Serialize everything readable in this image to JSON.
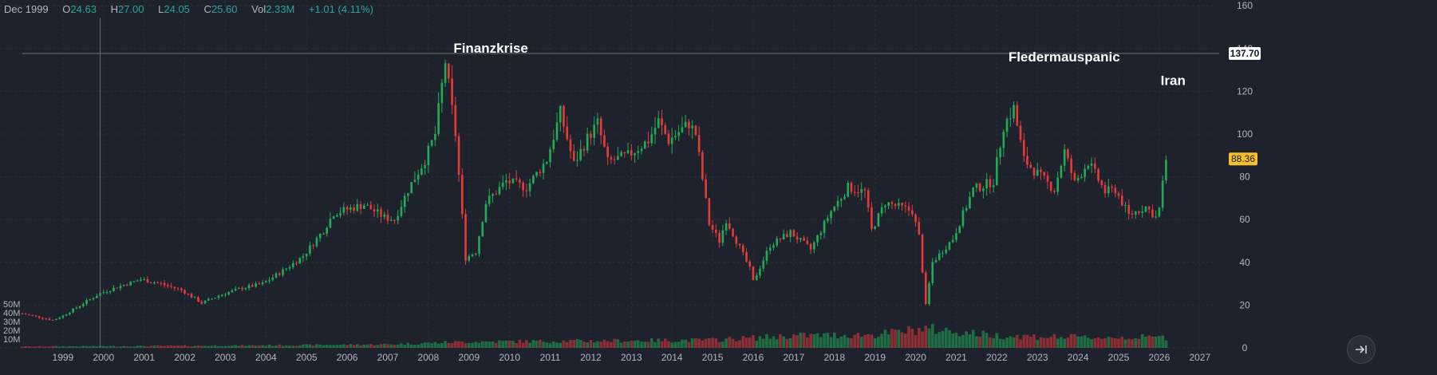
{
  "header": {
    "period": "Dec 1999",
    "open_label": "O",
    "open": "24.63",
    "high_label": "H",
    "high": "27.00",
    "low_label": "L",
    "low": "24.05",
    "close_label": "C",
    "close": "25.60",
    "vol_label": "Vol",
    "vol": "2.33M",
    "change": "+1.01 (4.11%)"
  },
  "colors": {
    "background": "#1e222d",
    "grid": "#2a2e39",
    "up": "#26a69a",
    "up_candle": "#22ab55",
    "down_candle": "#e53a3a",
    "text": "#b2b5be",
    "last_price_badge": "#f5c12b",
    "crosshair_badge": "#ffffff"
  },
  "chart_data": {
    "type": "candlestick",
    "interval": "monthly",
    "xlim": [
      "1998-01",
      "2027-06"
    ],
    "x_ticks": [
      "1999",
      "2000",
      "2001",
      "2002",
      "2003",
      "2004",
      "2005",
      "2006",
      "2007",
      "2008",
      "2009",
      "2010",
      "2011",
      "2012",
      "2013",
      "2014",
      "2015",
      "2016",
      "2017",
      "2018",
      "2019",
      "2020",
      "2021",
      "2022",
      "2023",
      "2024",
      "2025",
      "2026",
      "2027"
    ],
    "y_ticks": [
      0,
      20,
      40,
      60,
      80,
      100,
      120,
      140,
      160
    ],
    "ylim": [
      0,
      160
    ],
    "volume_ticks": [
      "10M",
      "20M",
      "30M",
      "40M",
      "50M"
    ],
    "grid": true,
    "crosshair": {
      "date": "1999-12",
      "price": 137.7,
      "label": "137.70"
    },
    "last_price": {
      "value": 88.36,
      "label": "88.36"
    },
    "annotations": [
      {
        "text": "Finanzkrise",
        "date": "2008-07",
        "price": 138
      },
      {
        "text": "Fledermauspanic",
        "date": "2022-03",
        "price": 134
      },
      {
        "text": "Iran",
        "date": "2025-12",
        "price": 123
      }
    ],
    "price_anchors": [
      [
        "1998-01",
        16
      ],
      [
        "1998-10",
        13
      ],
      [
        "1999-01",
        15
      ],
      [
        "1999-12",
        25.6
      ],
      [
        "2000-06",
        29
      ],
      [
        "2000-12",
        32
      ],
      [
        "2001-06",
        30
      ],
      [
        "2001-12",
        27
      ],
      [
        "2002-06",
        21
      ],
      [
        "2002-12",
        25
      ],
      [
        "2003-06",
        28
      ],
      [
        "2003-12",
        30
      ],
      [
        "2004-06",
        36
      ],
      [
        "2004-12",
        43
      ],
      [
        "2005-06",
        55
      ],
      [
        "2005-09",
        63
      ],
      [
        "2006-06",
        67
      ],
      [
        "2006-12",
        61
      ],
      [
        "2007-03",
        60
      ],
      [
        "2007-07",
        74
      ],
      [
        "2007-12",
        88
      ],
      [
        "2008-03",
        100
      ],
      [
        "2008-06",
        134
      ],
      [
        "2008-09",
        100
      ],
      [
        "2008-12",
        42
      ],
      [
        "2009-03",
        45
      ],
      [
        "2009-06",
        68
      ],
      [
        "2009-12",
        78
      ],
      [
        "2010-06",
        75
      ],
      [
        "2010-12",
        88
      ],
      [
        "2011-04",
        110
      ],
      [
        "2011-08",
        86
      ],
      [
        "2011-12",
        98
      ],
      [
        "2012-03",
        105
      ],
      [
        "2012-06",
        87
      ],
      [
        "2012-12",
        90
      ],
      [
        "2013-06",
        97
      ],
      [
        "2013-09",
        106
      ],
      [
        "2013-12",
        97
      ],
      [
        "2014-06",
        105
      ],
      [
        "2014-08",
        100
      ],
      [
        "2014-12",
        58
      ],
      [
        "2015-03",
        50
      ],
      [
        "2015-05",
        60
      ],
      [
        "2015-12",
        37
      ],
      [
        "2016-01",
        31
      ],
      [
        "2016-06",
        48
      ],
      [
        "2016-12",
        54
      ],
      [
        "2017-06",
        46
      ],
      [
        "2017-12",
        64
      ],
      [
        "2018-05",
        75
      ],
      [
        "2018-10",
        73
      ],
      [
        "2018-12",
        55
      ],
      [
        "2019-04",
        68
      ],
      [
        "2019-12",
        64
      ],
      [
        "2020-02",
        52
      ],
      [
        "2020-04",
        20
      ],
      [
        "2020-06",
        40
      ],
      [
        "2020-12",
        51
      ],
      [
        "2021-06",
        74
      ],
      [
        "2021-12",
        78
      ],
      [
        "2022-03",
        104
      ],
      [
        "2022-06",
        112
      ],
      [
        "2022-09",
        88
      ],
      [
        "2022-12",
        83
      ],
      [
        "2023-06",
        74
      ],
      [
        "2023-09",
        92
      ],
      [
        "2023-12",
        77
      ],
      [
        "2024-04",
        87
      ],
      [
        "2024-09",
        73
      ],
      [
        "2024-12",
        74
      ],
      [
        "2025-04",
        62
      ],
      [
        "2025-09",
        66
      ],
      [
        "2025-12",
        61
      ],
      [
        "2026-01",
        65
      ],
      [
        "2026-03",
        88.36
      ]
    ],
    "volume_anchors": [
      [
        "1998-01",
        1.5
      ],
      [
        "2003-01",
        2.5
      ],
      [
        "2007-01",
        4
      ],
      [
        "2009-01",
        7
      ],
      [
        "2012-01",
        8
      ],
      [
        "2015-01",
        9
      ],
      [
        "2017-01",
        14
      ],
      [
        "2019-01",
        15
      ],
      [
        "2020-04",
        22
      ],
      [
        "2022-01",
        14
      ],
      [
        "2024-01",
        12
      ],
      [
        "2026-03",
        12
      ]
    ]
  },
  "controls": {
    "scroll_to_realtime_icon": "arrow-to-right-icon"
  }
}
